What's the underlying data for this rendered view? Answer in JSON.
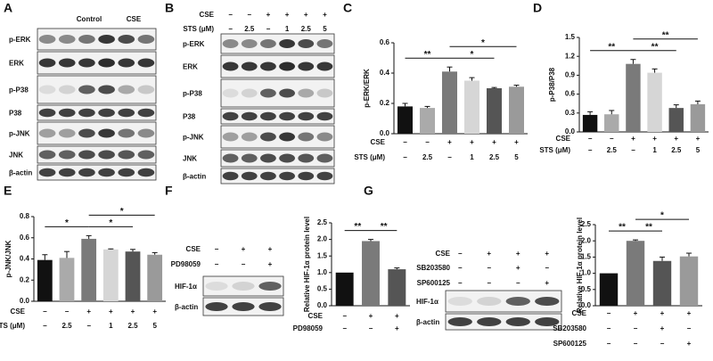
{
  "blots": [
    {
      "panel": "A",
      "columns": [
        "Control",
        "CSE"
      ],
      "rows": [
        "p-ERK",
        "ERK",
        "p-P38",
        "P38",
        "p-JNK",
        "JNK",
        "β-actin"
      ]
    },
    {
      "panel": "B",
      "conditions": [
        {
          "label": "CSE",
          "values": [
            "−",
            "−",
            "+",
            "+",
            "+",
            "+"
          ]
        },
        {
          "label": "STS (μM)",
          "values": [
            "−",
            "2.5",
            "−",
            "1",
            "2.5",
            "5"
          ]
        }
      ],
      "rows": [
        "p-ERK",
        "ERK",
        "p-P38",
        "P38",
        "p-JNK",
        "JNK",
        "β-actin"
      ]
    },
    {
      "panel": "F",
      "conditions": [
        {
          "label": "CSE",
          "values": [
            "−",
            "+",
            "+"
          ]
        },
        {
          "label": "PD98059",
          "values": [
            "−",
            "−",
            "+"
          ]
        }
      ],
      "rows": [
        "HIF-1α",
        "β-actin"
      ]
    },
    {
      "panel": "G",
      "conditions": [
        {
          "label": "CSE",
          "values": [
            "−",
            "+",
            "+",
            "+"
          ]
        },
        {
          "label": "SB203580",
          "values": [
            "−",
            "−",
            "+",
            "−"
          ]
        },
        {
          "label": "SP600125",
          "values": [
            "−",
            "−",
            "−",
            "+"
          ]
        }
      ],
      "rows": [
        "HIF-1α",
        "β-actin"
      ]
    }
  ],
  "chart_data": [
    {
      "type": "bar",
      "panel": "C",
      "y_label": "p-ERK/ERK",
      "values": [
        0.18,
        0.17,
        0.41,
        0.35,
        0.3,
        0.31
      ],
      "errors": [
        0.02,
        0.01,
        0.03,
        0.02,
        0.005,
        0.01
      ],
      "colors": [
        "#111111",
        "#aaaaaa",
        "#7a7a7a",
        "#d6d6d6",
        "#555555",
        "#9a9a9a"
      ],
      "ylim": [
        0,
        0.6
      ],
      "yticks": [
        {
          "value": 0,
          "label": "0.0"
        },
        0.2,
        0.4,
        0.6
      ],
      "conditions": [
        {
          "label": "CSE",
          "values": [
            "−",
            "−",
            "+",
            "+",
            "+",
            "+"
          ]
        },
        {
          "label": "STS (μM)",
          "values": [
            "−",
            "2.5",
            "−",
            "1",
            "2.5",
            "5"
          ]
        }
      ],
      "significance": [
        {
          "label": "**",
          "from": 0,
          "to": 2
        },
        {
          "label": "*",
          "from": 2,
          "to": 4
        },
        {
          "label": "*",
          "from": 2,
          "to": 5
        }
      ]
    },
    {
      "type": "bar",
      "panel": "D",
      "y_label": "p-P38/P38",
      "values": [
        0.27,
        0.28,
        1.08,
        0.94,
        0.38,
        0.44
      ],
      "errors": [
        0.05,
        0.06,
        0.07,
        0.06,
        0.05,
        0.05
      ],
      "colors": [
        "#111111",
        "#aaaaaa",
        "#7a7a7a",
        "#d6d6d6",
        "#555555",
        "#9a9a9a"
      ],
      "ylim": [
        0,
        1.5
      ],
      "yticks": [
        {
          "value": 0,
          "label": "0.0"
        },
        0.3,
        0.6,
        0.9,
        1.2,
        1.5
      ],
      "conditions": [
        {
          "label": "CSE",
          "values": [
            "−",
            "−",
            "+",
            "+",
            "+",
            "+"
          ]
        },
        {
          "label": "STS (μM)",
          "values": [
            "−",
            "2.5",
            "−",
            "1",
            "2.5",
            "5"
          ]
        }
      ],
      "significance": [
        {
          "label": "**",
          "from": 0,
          "to": 2
        },
        {
          "label": "**",
          "from": 2,
          "to": 4
        },
        {
          "label": "**",
          "from": 2,
          "to": 5
        }
      ]
    },
    {
      "type": "bar",
      "panel": "E",
      "y_label": "p-JNK/JNK",
      "values": [
        0.39,
        0.41,
        0.59,
        0.49,
        0.47,
        0.44
      ],
      "errors": [
        0.05,
        0.06,
        0.03,
        0.005,
        0.02,
        0.02
      ],
      "colors": [
        "#111111",
        "#aaaaaa",
        "#7a7a7a",
        "#d6d6d6",
        "#555555",
        "#9a9a9a"
      ],
      "ylim": [
        0,
        0.8
      ],
      "yticks": [
        {
          "value": 0,
          "label": "0.0"
        },
        0.2,
        0.4,
        0.6,
        0.8
      ],
      "conditions": [
        {
          "label": "CSE",
          "values": [
            "−",
            "−",
            "+",
            "+",
            "+",
            "+"
          ]
        },
        {
          "label": "STS (μM)",
          "values": [
            "−",
            "2.5",
            "−",
            "1",
            "2.5",
            "5"
          ]
        }
      ],
      "significance": [
        {
          "label": "*",
          "from": 0,
          "to": 2
        },
        {
          "label": "*",
          "from": 2,
          "to": 4
        },
        {
          "label": "*",
          "from": 2,
          "to": 5
        }
      ]
    },
    {
      "type": "bar",
      "y_label": "Relative HIF-1α protein level",
      "values": [
        1.0,
        1.95,
        1.1
      ],
      "errors": [
        0,
        0.05,
        0.04
      ],
      "colors": [
        "#111111",
        "#7a7a7a",
        "#555555"
      ],
      "ylim": [
        0,
        2.5
      ],
      "yticks": [
        {
          "value": 0,
          "label": "0.0"
        },
        0.5,
        {
          "value": 1,
          "label": "1.0"
        },
        1.5,
        {
          "value": 2,
          "label": "2.0"
        },
        2.5
      ],
      "conditions": [
        {
          "label": "CSE",
          "values": [
            "−",
            "+",
            "+"
          ]
        },
        {
          "label": "PD98059",
          "values": [
            "−",
            "−",
            "+"
          ]
        }
      ],
      "significance": [
        {
          "label": "**",
          "from": 0,
          "to": 1
        },
        {
          "label": "**",
          "from": 1,
          "to": 2
        }
      ]
    },
    {
      "type": "bar",
      "y_label": "Relative HIF-1α protein level",
      "values": [
        1.0,
        2.0,
        1.38,
        1.52
      ],
      "errors": [
        0,
        0.03,
        0.12,
        0.1
      ],
      "colors": [
        "#111111",
        "#7a7a7a",
        "#555555",
        "#9a9a9a"
      ],
      "ylim": [
        0,
        2.5
      ],
      "yticks": [
        {
          "value": 0,
          "label": "0.0"
        },
        0.5,
        {
          "value": 1,
          "label": "1.0"
        },
        1.5,
        {
          "value": 2,
          "label": "2.0"
        },
        2.5
      ],
      "conditions": [
        {
          "label": "CSE",
          "values": [
            "−",
            "+",
            "+",
            "+"
          ]
        },
        {
          "label": "SB203580",
          "values": [
            "−",
            "−",
            "+",
            "−"
          ]
        },
        {
          "label": "SP600125",
          "values": [
            "−",
            "−",
            "−",
            "+"
          ]
        }
      ],
      "significance": [
        {
          "label": "**",
          "from": 0,
          "to": 1
        },
        {
          "label": "**",
          "from": 1,
          "to": 2
        },
        {
          "label": "*",
          "from": 1,
          "to": 3
        }
      ]
    }
  ]
}
